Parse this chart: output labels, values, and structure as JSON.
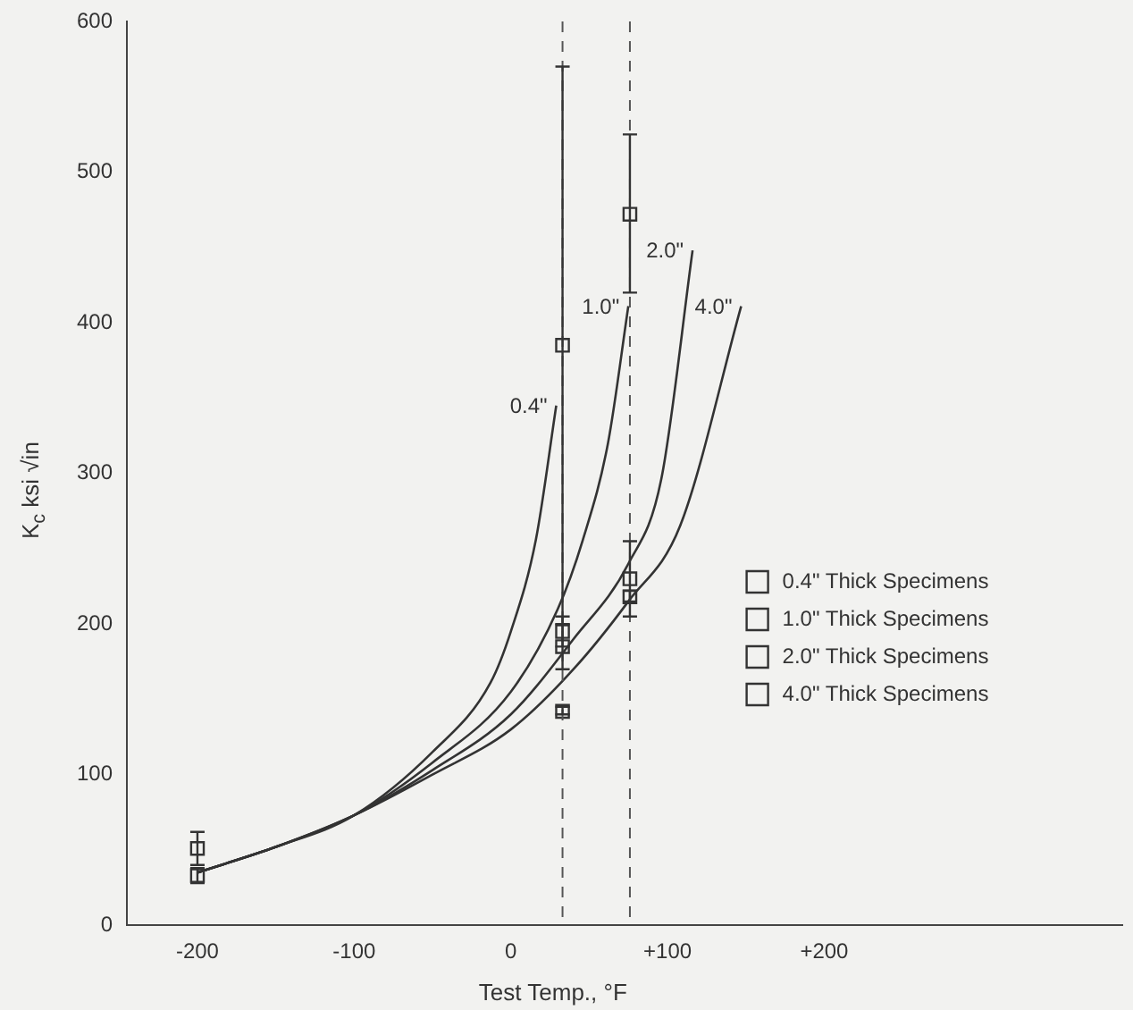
{
  "chart_data": {
    "type": "line",
    "xlabel": "Test Temp., °F",
    "ylabel": "K$_{c}$ ksi √in",
    "xlim": [
      -245,
      390
    ],
    "ylim": [
      0,
      600
    ],
    "xticks": [
      -200,
      -100,
      0,
      {
        "value": 100,
        "label": "+100"
      },
      {
        "value": 200,
        "label": "+200"
      }
    ],
    "yticks": [
      0,
      100,
      200,
      300,
      400,
      500,
      600
    ],
    "grid": false,
    "legend": "right",
    "marker": "square",
    "line_style": "solid",
    "ref_lines": [
      {
        "axis": "x",
        "value": 33,
        "line_style": "dashed",
        "color": "#555555"
      },
      {
        "axis": "x",
        "value": 76,
        "line_style": "dashed",
        "color": "#555555"
      }
    ],
    "series": [
      {
        "name": "0.4\"",
        "marker": "none",
        "color": "#333333",
        "x": [
          -200,
          -150,
          -100,
          -50,
          -13,
          0,
          16,
          29
        ],
        "values": [
          35,
          52,
          73,
          115,
          161,
          195,
          256,
          345
        ]
      },
      {
        "name": "1.0\"",
        "marker": "none",
        "color": "#333333",
        "x": [
          -200,
          -150,
          -100,
          -50,
          0,
          30,
          46,
          62,
          75
        ],
        "values": [
          35,
          52,
          73,
          108,
          155,
          210,
          256,
          320,
          411
        ]
      },
      {
        "name": "2.0\"",
        "marker": "none",
        "color": "#333333",
        "x": [
          -200,
          -150,
          -100,
          -50,
          0,
          40,
          75,
          96,
          116
        ],
        "values": [
          35,
          52,
          73,
          103,
          140,
          190,
          240,
          296,
          448
        ]
      },
      {
        "name": "4.0\"",
        "marker": "none",
        "color": "#333333",
        "x": [
          -200,
          -150,
          -100,
          -50,
          0,
          40,
          75,
          108,
          147
        ],
        "values": [
          35,
          52,
          73,
          100,
          130,
          170,
          215,
          265,
          411
        ]
      },
      {
        "name": "0.4\" Thick Specimens",
        "type": "scatter",
        "color": "#333333",
        "x": [
          33,
          76
        ],
        "values": [
          385,
          472
        ],
        "errors": [
          [
            200,
            570
          ],
          [
            420,
            525
          ]
        ]
      },
      {
        "name": "1.0\" Thick Specimens",
        "type": "scatter",
        "color": "#333333",
        "x": [
          -200,
          33
        ],
        "values": [
          51,
          195
        ],
        "errors": [
          [
            40,
            62
          ],
          [
            185,
            205
          ]
        ]
      },
      {
        "name": "2.0\" Thick Specimens",
        "type": "scatter",
        "color": "#333333",
        "x": [
          33,
          76
        ],
        "values": [
          185,
          230
        ],
        "errors": [
          [
            170,
            200
          ],
          [
            205,
            255
          ]
        ]
      },
      {
        "name": "4.0\" Thick Specimens",
        "type": "scatter",
        "color": "#333333",
        "x": [
          -200,
          33,
          76
        ],
        "values": [
          33,
          142,
          218
        ],
        "errors": [
          [
            28,
            38
          ],
          [
            140,
            145
          ],
          [
            215,
            222
          ]
        ]
      }
    ]
  }
}
